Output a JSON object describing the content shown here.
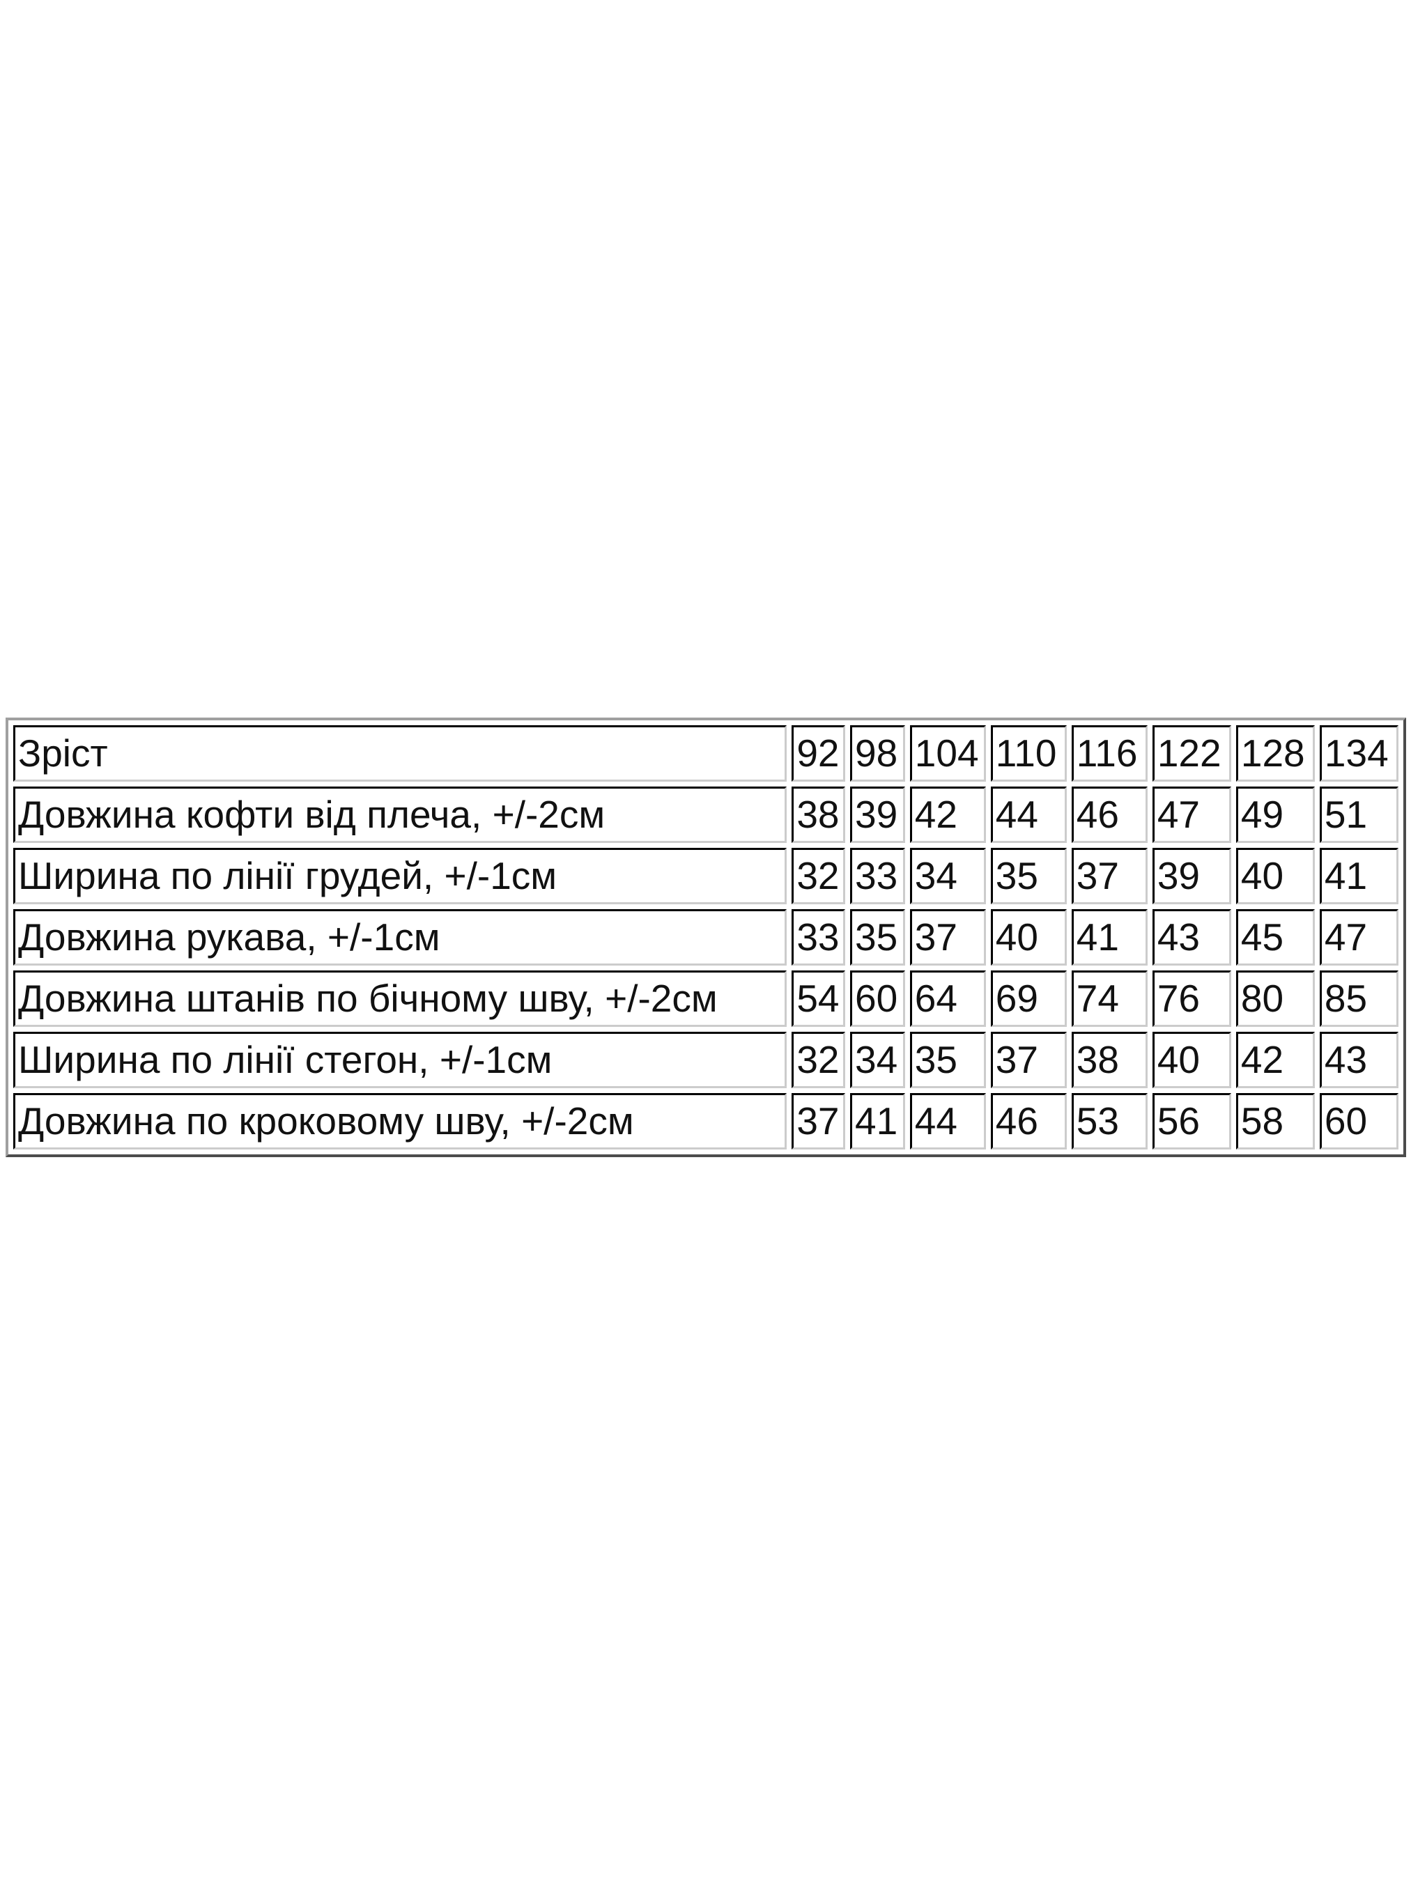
{
  "size_table": {
    "header": {
      "label": "Зріст",
      "sizes": [
        "92",
        "98",
        "104",
        "110",
        "116",
        "122",
        "128",
        "134"
      ]
    },
    "rows": [
      {
        "label": "Довжина кофти від плеча, +/-2см",
        "values": [
          "38",
          "39",
          "42",
          "44",
          "46",
          "47",
          "49",
          "51"
        ]
      },
      {
        "label": "Ширина по лінії грудей, +/-1см",
        "values": [
          "32",
          "33",
          "34",
          "35",
          "37",
          "39",
          "40",
          "41"
        ]
      },
      {
        "label": "Довжина рукава, +/-1см",
        "values": [
          "33",
          "35",
          "37",
          "40",
          "41",
          "43",
          "45",
          "47"
        ]
      },
      {
        "label": "Довжина штанів по бічному шву, +/-2см",
        "values": [
          "54",
          "60",
          "64",
          "69",
          "74",
          "76",
          "80",
          "85"
        ]
      },
      {
        "label": "Ширина по лінії стегон, +/-1см",
        "values": [
          "32",
          "34",
          "35",
          "37",
          "38",
          "40",
          "42",
          "43"
        ]
      },
      {
        "label": "Довжина по кроковому шву, +/-2см",
        "values": [
          "37",
          "41",
          "44",
          "46",
          "53",
          "56",
          "58",
          "60"
        ]
      }
    ]
  }
}
